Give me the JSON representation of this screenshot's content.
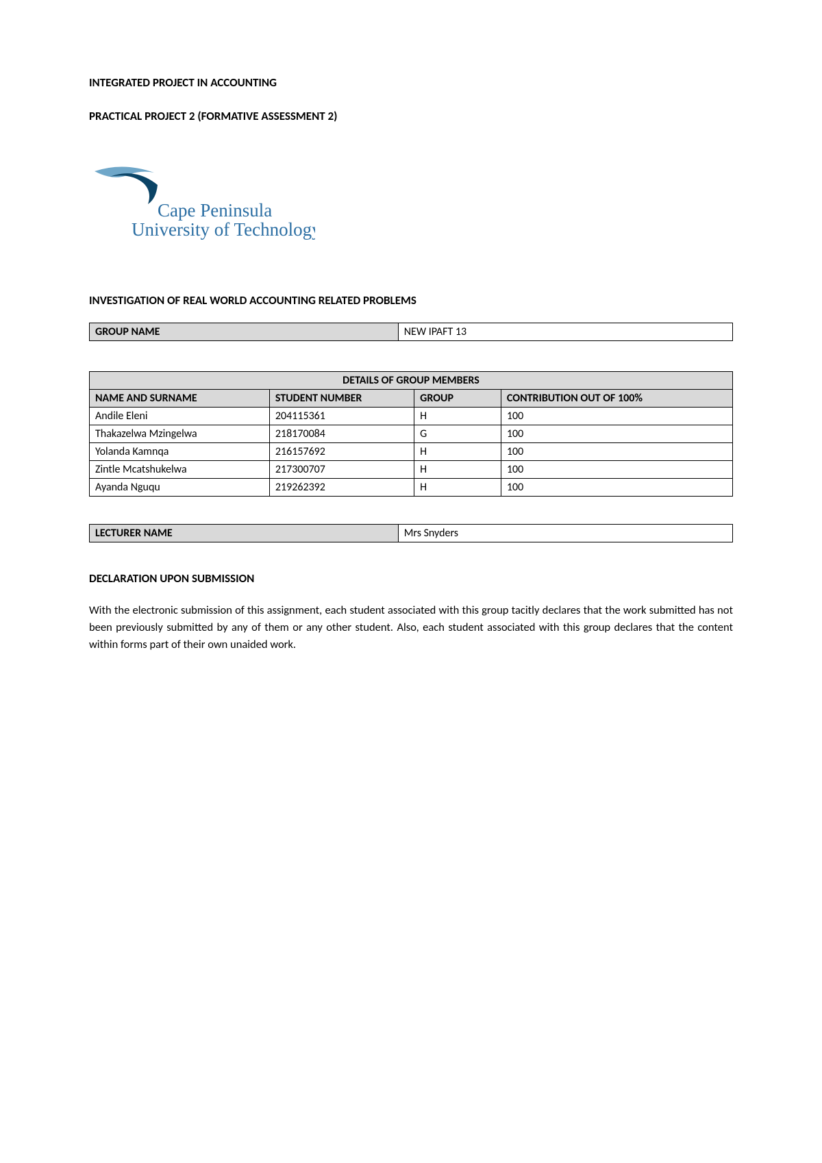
{
  "header": {
    "line1": "INTEGRATED PROJECT IN ACCOUNTING",
    "line2": "PRACTICAL PROJECT 2 (FORMATIVE ASSESSMENT 2)"
  },
  "logo": {
    "line_top": "Cape Peninsula",
    "line_bottom": "University of Technology",
    "accent_color": "#2b6ea3",
    "text_color": "#2b6ea3",
    "swoosh_dark": "#0b4466",
    "swoosh_light": "#6fa7c9"
  },
  "investigation": {
    "title": "INVESTIGATION OF REAL WORLD ACCOUNTING RELATED PROBLEMS"
  },
  "group_name_table": {
    "label": "GROUP NAME",
    "value": "NEW IPAFT 13"
  },
  "members_table": {
    "title": "DETAILS OF GROUP MEMBERS",
    "columns": [
      "NAME AND SURNAME",
      "STUDENT NUMBER",
      "GROUP",
      "CONTRIBUTION OUT OF 100%"
    ],
    "rows": [
      [
        "Andile Eleni",
        "204115361",
        "H",
        "100"
      ],
      [
        "Thakazelwa Mzingelwa",
        "218170084",
        "G",
        "100"
      ],
      [
        "Yolanda Kamnqa",
        "216157692",
        "H",
        "100"
      ],
      [
        "Zintle Mcatshukelwa",
        "217300707",
        "H",
        "100"
      ],
      [
        "Ayanda Nguqu",
        "219262392",
        "H",
        "100"
      ]
    ]
  },
  "lecturer_table": {
    "label": "LECTURER NAME",
    "value": "Mrs Snyders"
  },
  "declaration": {
    "title": "DECLARATION UPON SUBMISSION",
    "text": "With the electronic submission of this assignment, each student associated with this group tacitly declares that the work submitted has not been previously submitted by any of them or any other student. Also, each student associated with this group declares that the content within forms part of their own unaided work."
  },
  "styling": {
    "page_bg": "#ffffff",
    "text_color": "#000000",
    "table_header_bg": "#d9d9d9",
    "border_color": "#000000",
    "body_font_size": 16,
    "heading_font_size": 17
  }
}
